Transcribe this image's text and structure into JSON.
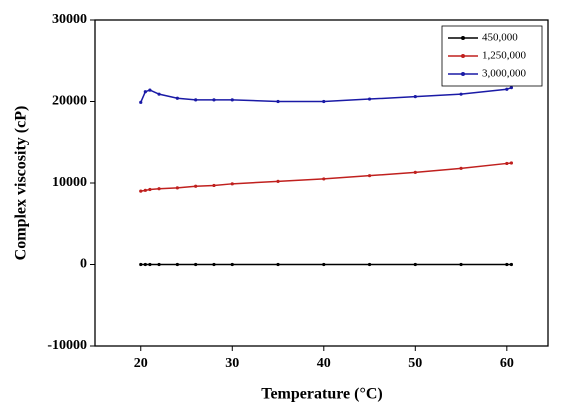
{
  "chart_data": {
    "type": "line",
    "x_label": "Temperature (°C)",
    "y_label": "Complex viscosity (cP)",
    "x": [
      20,
      20.5,
      21,
      22,
      24,
      26,
      28,
      30,
      35,
      40,
      45,
      50,
      55,
      60,
      60.5
    ],
    "series": [
      {
        "name": "450,000",
        "color": "#000000",
        "values": [
          0,
          0,
          0,
          0,
          0,
          0,
          0,
          0,
          0,
          0,
          0,
          0,
          0,
          0,
          0
        ]
      },
      {
        "name": "1,250,000",
        "color": "#c0201e",
        "values": [
          9000,
          9100,
          9200,
          9300,
          9400,
          9600,
          9700,
          9900,
          10200,
          10500,
          10900,
          11300,
          11800,
          12400,
          12450
        ]
      },
      {
        "name": "3,000,000",
        "color": "#1a1aa6",
        "values": [
          19900,
          21200,
          21400,
          20900,
          20400,
          20200,
          20200,
          20200,
          20000,
          20000,
          20300,
          20600,
          20900,
          21500,
          21700
        ]
      }
    ],
    "xlim": [
      15,
      64.5
    ],
    "ylim": [
      -10000,
      30000
    ],
    "xticks": [
      20,
      30,
      40,
      50,
      60
    ],
    "yticks": [
      -10000,
      0,
      10000,
      20000,
      30000
    ],
    "legend": "upper right"
  }
}
